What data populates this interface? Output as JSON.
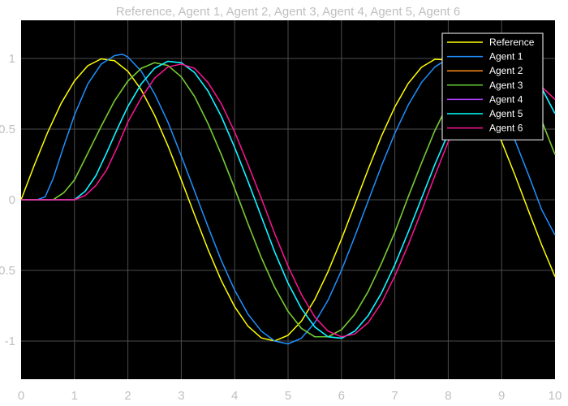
{
  "chart_data": {
    "type": "line",
    "title": "Reference, Agent 1, Agent 2, Agent 3, Agent 4, Agent 5, Agent 6",
    "xlabel": "",
    "ylabel": "",
    "xlim": [
      0,
      10
    ],
    "ylim": [
      -1.27,
      1.27
    ],
    "xticks": [
      0,
      1,
      2,
      3,
      4,
      5,
      6,
      7,
      8,
      9,
      10
    ],
    "xtick_labels": [
      "0",
      "1",
      "2",
      "3",
      "4",
      "5",
      "6",
      "7",
      "8",
      "9",
      "10"
    ],
    "yticks": [
      1,
      0.5,
      0,
      -0.5,
      -1
    ],
    "ytick_labels": [
      "1",
      "0.5",
      "0",
      "-0.5",
      "-1"
    ],
    "grid": true,
    "background": "#000000",
    "grid_color": "#4d4d4d",
    "legend_position": "top-right",
    "series": [
      {
        "name": "Reference",
        "color": "#ffff00",
        "x": [
          0,
          0.25,
          0.5,
          0.75,
          1,
          1.25,
          1.5,
          1.75,
          2,
          2.25,
          2.5,
          2.75,
          3,
          3.25,
          3.5,
          3.75,
          4,
          4.25,
          4.5,
          4.75,
          5,
          5.25,
          5.5,
          5.75,
          6,
          6.25,
          6.5,
          6.75,
          7,
          7.25,
          7.5,
          7.75,
          8,
          8.25,
          8.5,
          8.75,
          9,
          9.25,
          9.5,
          9.75,
          10
        ],
        "y": [
          0,
          0.247,
          0.479,
          0.682,
          0.841,
          0.949,
          0.997,
          0.984,
          0.909,
          0.778,
          0.598,
          0.382,
          0.141,
          -0.108,
          -0.351,
          -0.572,
          -0.757,
          -0.895,
          -0.978,
          -0.999,
          -0.959,
          -0.859,
          -0.706,
          -0.508,
          -0.279,
          -0.033,
          0.215,
          0.451,
          0.657,
          0.823,
          0.938,
          0.994,
          0.989,
          0.923,
          0.798,
          0.625,
          0.412,
          0.174,
          -0.075,
          -0.319,
          -0.544
        ]
      },
      {
        "name": "Agent 1",
        "color": "#1e90ff",
        "x": [
          0,
          0.3,
          0.45,
          0.6,
          0.8,
          1,
          1.25,
          1.5,
          1.75,
          1.9,
          2,
          2.25,
          2.5,
          2.75,
          3,
          3.25,
          3.5,
          3.75,
          4,
          4.25,
          4.5,
          4.75,
          5,
          5.25,
          5.5,
          5.75,
          6,
          6.25,
          6.5,
          6.75,
          7,
          7.25,
          7.5,
          7.75,
          8,
          8.25,
          8.5,
          8.75,
          9,
          9.25,
          9.5,
          9.75,
          10
        ],
        "y": [
          0,
          0,
          0.02,
          0.15,
          0.38,
          0.6,
          0.82,
          0.96,
          1.02,
          1.03,
          1.01,
          0.91,
          0.75,
          0.55,
          0.31,
          0.06,
          -0.19,
          -0.43,
          -0.64,
          -0.81,
          -0.93,
          -1.0,
          -1.02,
          -0.98,
          -0.87,
          -0.71,
          -0.5,
          -0.26,
          -0.01,
          0.24,
          0.47,
          0.67,
          0.83,
          0.94,
          1.0,
          0.99,
          0.92,
          0.8,
          0.63,
          0.42,
          0.18,
          -0.07,
          -0.25
        ]
      },
      {
        "name": "Agent 2",
        "color": "#ff8c1a",
        "x": [
          0,
          0.6,
          0.8,
          1,
          1.25,
          1.5,
          1.75,
          2,
          2.25,
          2.5,
          2.75,
          3,
          3.25,
          3.5,
          3.75,
          4,
          4.25,
          4.5,
          4.75,
          5,
          5.25,
          5.5,
          5.75,
          6,
          6.25,
          6.5,
          6.75,
          7,
          7.25,
          7.5,
          7.75,
          8,
          8.25,
          8.5,
          8.75,
          9,
          9.25,
          9.5,
          9.75,
          10
        ],
        "y": [
          0,
          0,
          0.05,
          0.14,
          0.33,
          0.52,
          0.7,
          0.84,
          0.93,
          0.97,
          0.95,
          0.87,
          0.73,
          0.54,
          0.32,
          0.08,
          -0.17,
          -0.41,
          -0.62,
          -0.79,
          -0.91,
          -0.97,
          -0.97,
          -0.92,
          -0.81,
          -0.65,
          -0.45,
          -0.23,
          0.02,
          0.26,
          0.49,
          0.68,
          0.84,
          0.95,
          1.0,
          0.99,
          0.91,
          0.76,
          0.56,
          0.32
        ]
      },
      {
        "name": "Agent 3",
        "color": "#66cc33",
        "x": [
          0,
          0.6,
          0.8,
          1,
          1.25,
          1.5,
          1.75,
          2,
          2.25,
          2.5,
          2.75,
          3,
          3.25,
          3.5,
          3.75,
          4,
          4.25,
          4.5,
          4.75,
          5,
          5.25,
          5.5,
          5.75,
          6,
          6.25,
          6.5,
          6.75,
          7,
          7.25,
          7.5,
          7.75,
          8,
          8.25,
          8.5,
          8.75,
          9,
          9.25,
          9.5,
          9.75,
          10
        ],
        "y": [
          0,
          0,
          0.05,
          0.14,
          0.33,
          0.52,
          0.7,
          0.84,
          0.93,
          0.97,
          0.95,
          0.87,
          0.73,
          0.54,
          0.32,
          0.08,
          -0.17,
          -0.41,
          -0.62,
          -0.79,
          -0.91,
          -0.97,
          -0.97,
          -0.92,
          -0.81,
          -0.65,
          -0.45,
          -0.23,
          0.02,
          0.26,
          0.49,
          0.68,
          0.84,
          0.95,
          1.0,
          0.99,
          0.91,
          0.76,
          0.56,
          0.32
        ]
      },
      {
        "name": "Agent 4",
        "color": "#b040ff",
        "x": [
          0,
          1,
          1.2,
          1.4,
          1.6,
          1.8,
          2,
          2.25,
          2.5,
          2.75,
          3,
          3.25,
          3.5,
          3.75,
          4,
          4.25,
          4.5,
          4.75,
          5,
          5.25,
          5.5,
          5.75,
          6,
          6.25,
          6.5,
          6.75,
          7,
          7.25,
          7.5,
          7.75,
          8,
          8.25,
          8.5,
          8.75,
          9,
          9.25,
          9.5,
          9.75,
          10
        ],
        "y": [
          0,
          0,
          0.06,
          0.17,
          0.33,
          0.5,
          0.66,
          0.82,
          0.93,
          0.98,
          0.97,
          0.9,
          0.77,
          0.59,
          0.37,
          0.13,
          -0.12,
          -0.37,
          -0.59,
          -0.77,
          -0.9,
          -0.97,
          -0.98,
          -0.93,
          -0.82,
          -0.66,
          -0.46,
          -0.23,
          0.01,
          0.25,
          0.47,
          0.66,
          0.81,
          0.92,
          0.98,
          0.98,
          0.91,
          0.79,
          0.61
        ]
      },
      {
        "name": "Agent 5",
        "color": "#00ffff",
        "x": [
          0,
          1,
          1.2,
          1.4,
          1.6,
          1.8,
          2,
          2.25,
          2.5,
          2.75,
          3,
          3.25,
          3.5,
          3.75,
          4,
          4.25,
          4.5,
          4.75,
          5,
          5.25,
          5.5,
          5.75,
          6,
          6.25,
          6.5,
          6.75,
          7,
          7.25,
          7.5,
          7.75,
          8,
          8.25,
          8.5,
          8.75,
          9,
          9.25,
          9.5,
          9.75,
          10
        ],
        "y": [
          0,
          0,
          0.06,
          0.17,
          0.33,
          0.5,
          0.66,
          0.82,
          0.93,
          0.98,
          0.97,
          0.9,
          0.77,
          0.59,
          0.37,
          0.13,
          -0.12,
          -0.37,
          -0.59,
          -0.77,
          -0.9,
          -0.97,
          -0.98,
          -0.93,
          -0.82,
          -0.66,
          -0.46,
          -0.23,
          0.01,
          0.25,
          0.47,
          0.66,
          0.81,
          0.92,
          0.98,
          0.98,
          0.91,
          0.79,
          0.61
        ]
      },
      {
        "name": "Agent 6",
        "color": "#ff1493",
        "x": [
          0,
          1,
          1.2,
          1.4,
          1.6,
          1.8,
          2,
          2.25,
          2.5,
          2.75,
          3,
          3.25,
          3.5,
          3.75,
          4,
          4.25,
          4.5,
          4.75,
          5,
          5.25,
          5.5,
          5.75,
          6,
          6.25,
          6.5,
          6.75,
          7,
          7.25,
          7.5,
          7.75,
          8,
          8.25,
          8.5,
          8.75,
          9,
          9.25,
          9.5,
          9.75,
          10
        ],
        "y": [
          0,
          0,
          0.03,
          0.1,
          0.21,
          0.37,
          0.55,
          0.72,
          0.86,
          0.94,
          0.96,
          0.93,
          0.83,
          0.68,
          0.48,
          0.25,
          0.01,
          -0.24,
          -0.47,
          -0.67,
          -0.83,
          -0.93,
          -0.97,
          -0.95,
          -0.87,
          -0.73,
          -0.54,
          -0.32,
          -0.08,
          0.17,
          0.41,
          0.62,
          0.78,
          0.9,
          0.96,
          0.96,
          0.9,
          0.8,
          0.71
        ]
      }
    ]
  }
}
